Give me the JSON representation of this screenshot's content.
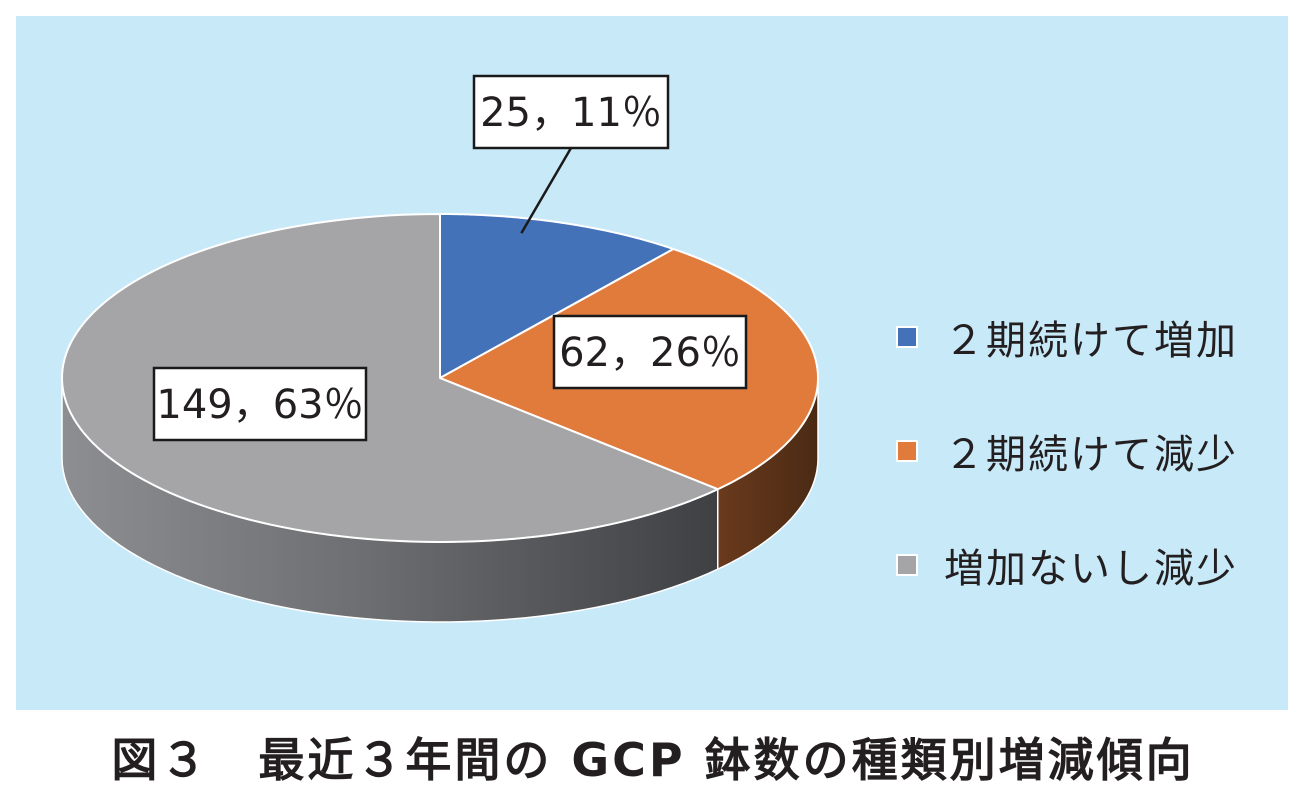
{
  "chart_data": {
    "type": "pie",
    "style": "3d",
    "categories": [
      "２期続けて増加",
      "２期続けて減少",
      "増加ないし減少"
    ],
    "values": [
      25,
      62,
      149
    ],
    "percentages": [
      11,
      26,
      63
    ],
    "data_labels": [
      "25，11％",
      "62，26％",
      "149，63％"
    ],
    "colors": [
      "#4472b9",
      "#e07b3c",
      "#a5a5a7"
    ],
    "side_colors": [
      "#2f4f82",
      "#5a331a",
      "#5d5e61"
    ],
    "legend_position": "right",
    "title": ""
  },
  "legend": {
    "items": [
      {
        "label": "２期続けて増加",
        "color": "#4472b9"
      },
      {
        "label": "２期続けて減少",
        "color": "#e07b3c"
      },
      {
        "label": "増加ないし減少",
        "color": "#a5a5a7"
      }
    ]
  },
  "caption": "図３　最近３年間の GCP 鉢数の種類別増減傾向",
  "colors": {
    "panel_background": "#c8e9f8"
  }
}
